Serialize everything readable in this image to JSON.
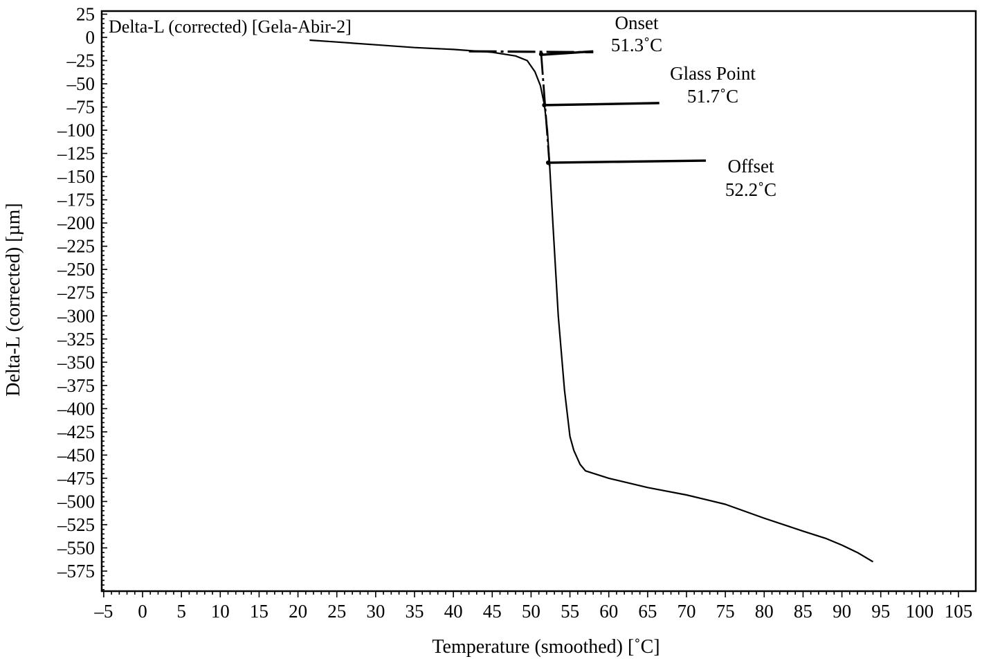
{
  "chart_data": {
    "type": "line",
    "title": "Delta-L (corrected) [Gela-Abir-2]",
    "xlabel": "Temperature (smoothed) [˚C]",
    "ylabel": "Delta-L (corrected)  [µm]",
    "xlim": [
      -5,
      105
    ],
    "ylim": [
      -600,
      25
    ],
    "x_ticks": [
      -5,
      0,
      5,
      10,
      15,
      20,
      25,
      30,
      35,
      40,
      45,
      50,
      55,
      60,
      65,
      70,
      75,
      80,
      85,
      90,
      95,
      100,
      105
    ],
    "x_tick_labels": [
      "–5",
      "0",
      "5",
      "10",
      "15",
      "20",
      "25",
      "30",
      "35",
      "40",
      "45",
      "50",
      "55",
      "60",
      "65",
      "70",
      "75",
      "80",
      "85",
      "90",
      "95",
      "100",
      "105"
    ],
    "y_ticks": [
      25,
      0,
      -25,
      -50,
      -75,
      -100,
      -125,
      -150,
      -175,
      -200,
      -225,
      -250,
      -275,
      -300,
      -325,
      -350,
      -375,
      -400,
      -425,
      -450,
      -475,
      -500,
      -525,
      -550,
      -575
    ],
    "y_tick_labels": [
      "25",
      "0",
      "–25",
      "–50",
      "–75",
      "–100",
      "–125",
      "–150",
      "–175",
      "–200",
      "–225",
      "–250",
      "–275",
      "–300",
      "–325",
      "–350",
      "–375",
      "–400",
      "–425",
      "–450",
      "–475",
      "–500",
      "–525",
      "–550",
      "–575"
    ],
    "grid": false,
    "legend": "none",
    "series": [
      {
        "x": [
          21.5,
          25,
          30,
          35,
          40,
          45,
          48,
          49.5,
          50.5,
          51.2,
          51.7,
          52.1,
          52.4,
          52.8,
          53.5,
          54.3,
          55.0,
          55.5,
          56.3,
          57.0,
          60,
          65,
          70,
          75,
          80,
          85,
          88,
          90,
          92,
          94
        ],
        "y": [
          -3,
          -5,
          -8,
          -11,
          -13,
          -16,
          -20,
          -25,
          -37,
          -52,
          -72,
          -100,
          -140,
          -200,
          -300,
          -380,
          -430,
          -445,
          -460,
          -467,
          -475,
          -485,
          -493,
          -503,
          -518,
          -532,
          -540,
          -547,
          -555,
          -565
        ]
      }
    ],
    "annotations": [
      {
        "label": "Onset",
        "value": "51.3˚C",
        "x": 51.3,
        "y": -18,
        "line_to_x": 58
      },
      {
        "label": "Glass Point",
        "value": "51.7˚C",
        "x": 51.7,
        "y": -73,
        "line_to_x": 66.5
      },
      {
        "label": "Offset",
        "value": "52.2˚C",
        "x": 52.2,
        "y": -135,
        "line_to_x": 72.5
      }
    ],
    "extrapolated_baseline": {
      "x": [
        42,
        58
      ],
      "y": [
        -15,
        -16
      ]
    }
  }
}
